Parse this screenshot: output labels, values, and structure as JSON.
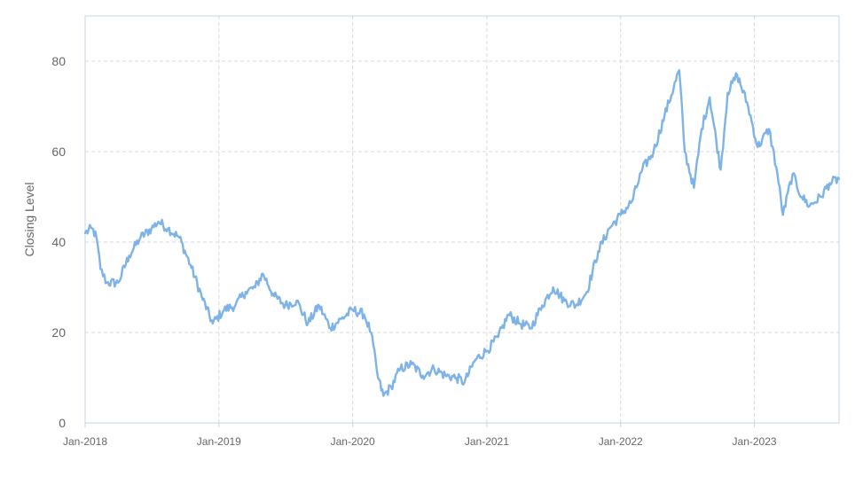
{
  "chart_data": {
    "type": "line",
    "title": "",
    "xlabel": "",
    "ylabel": "Closing Level",
    "xlim": [
      "2018-01-01",
      "2023-08-20"
    ],
    "ylim": [
      0,
      90
    ],
    "grid": true,
    "legend": "none",
    "x_ticks": [
      "Jan-2018",
      "Jan-2019",
      "Jan-2020",
      "Jan-2021",
      "Jan-2022",
      "Jan-2023"
    ],
    "y_ticks": [
      0,
      20,
      40,
      60,
      80
    ],
    "series": [
      {
        "color": "#7eb3e8",
        "points": [
          [
            "2018-01-01",
            42
          ],
          [
            "2018-01-20",
            43
          ],
          [
            "2018-02-01",
            41
          ],
          [
            "2018-02-12",
            34
          ],
          [
            "2018-03-01",
            31
          ],
          [
            "2018-04-01",
            31
          ],
          [
            "2018-05-01",
            37
          ],
          [
            "2018-06-01",
            41
          ],
          [
            "2018-07-01",
            43
          ],
          [
            "2018-07-20",
            44.5
          ],
          [
            "2018-08-15",
            43
          ],
          [
            "2018-09-15",
            41
          ],
          [
            "2018-10-15",
            35
          ],
          [
            "2018-11-15",
            28
          ],
          [
            "2018-12-15",
            22
          ],
          [
            "2019-01-15",
            25
          ],
          [
            "2019-02-15",
            26
          ],
          [
            "2019-03-15",
            29
          ],
          [
            "2019-04-10",
            30
          ],
          [
            "2019-05-01",
            33
          ],
          [
            "2019-06-01",
            28
          ],
          [
            "2019-07-01",
            26
          ],
          [
            "2019-08-01",
            27
          ],
          [
            "2019-09-01",
            22
          ],
          [
            "2019-10-01",
            26
          ],
          [
            "2019-11-01",
            21
          ],
          [
            "2019-12-01",
            23
          ],
          [
            "2020-01-01",
            25
          ],
          [
            "2020-02-01",
            24
          ],
          [
            "2020-02-20",
            20
          ],
          [
            "2020-03-10",
            10
          ],
          [
            "2020-03-25",
            6
          ],
          [
            "2020-04-15",
            8
          ],
          [
            "2020-05-10",
            12
          ],
          [
            "2020-06-10",
            13
          ],
          [
            "2020-07-10",
            10.5
          ],
          [
            "2020-08-10",
            12
          ],
          [
            "2020-09-10",
            10.5
          ],
          [
            "2020-10-10",
            10
          ],
          [
            "2020-11-01",
            9
          ],
          [
            "2020-12-01",
            14
          ],
          [
            "2021-01-01",
            16
          ],
          [
            "2021-02-01",
            19
          ],
          [
            "2021-03-01",
            24
          ],
          [
            "2021-04-01",
            22
          ],
          [
            "2021-05-01",
            21
          ],
          [
            "2021-06-01",
            26
          ],
          [
            "2021-07-01",
            30
          ],
          [
            "2021-08-01",
            27
          ],
          [
            "2021-09-01",
            26
          ],
          [
            "2021-10-01",
            29
          ],
          [
            "2021-11-01",
            38
          ],
          [
            "2021-12-01",
            43
          ],
          [
            "2022-01-01",
            46
          ],
          [
            "2022-02-01",
            49
          ],
          [
            "2022-03-01",
            56
          ],
          [
            "2022-04-01",
            60
          ],
          [
            "2022-05-01",
            68
          ],
          [
            "2022-06-10",
            78
          ],
          [
            "2022-06-25",
            60
          ],
          [
            "2022-07-20",
            52
          ],
          [
            "2022-08-10",
            65
          ],
          [
            "2022-09-01",
            72
          ],
          [
            "2022-10-01",
            56
          ],
          [
            "2022-10-20",
            73
          ],
          [
            "2022-11-15",
            77
          ],
          [
            "2022-12-15",
            70
          ],
          [
            "2023-01-10",
            61
          ],
          [
            "2023-02-10",
            65
          ],
          [
            "2023-03-05",
            55
          ],
          [
            "2023-03-20",
            46
          ],
          [
            "2023-04-15",
            55
          ],
          [
            "2023-05-10",
            50
          ],
          [
            "2023-06-01",
            48
          ],
          [
            "2023-07-01",
            50
          ],
          [
            "2023-07-25",
            53
          ],
          [
            "2023-08-20",
            54
          ]
        ]
      }
    ]
  }
}
